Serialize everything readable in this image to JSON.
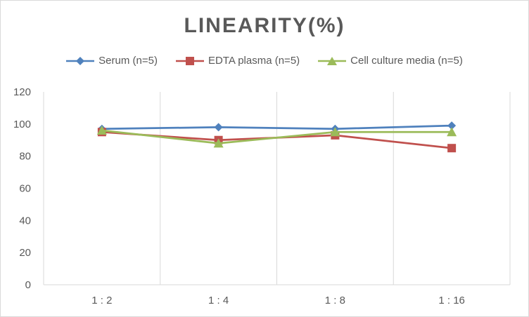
{
  "chart_data": {
    "type": "line",
    "title": "LINEARITY(%)",
    "categories": [
      "1:2",
      "1:4",
      "1:8",
      "1:16"
    ],
    "ylim": [
      0,
      120
    ],
    "yticks": [
      0,
      20,
      40,
      60,
      80,
      100,
      120
    ],
    "grid": "vertical",
    "legend": "top",
    "series": [
      {
        "name": "Serum (n=5)",
        "color": "#4f81bd",
        "marker": "diamond",
        "values": [
          97,
          98,
          97,
          99
        ]
      },
      {
        "name": "EDTA plasma (n=5)",
        "color": "#c0504d",
        "marker": "square",
        "values": [
          95,
          90,
          93,
          85
        ]
      },
      {
        "name": "Cell culture media (n=5)",
        "color": "#9bbb59",
        "marker": "triangle",
        "values": [
          96,
          88,
          95,
          95
        ]
      }
    ]
  }
}
